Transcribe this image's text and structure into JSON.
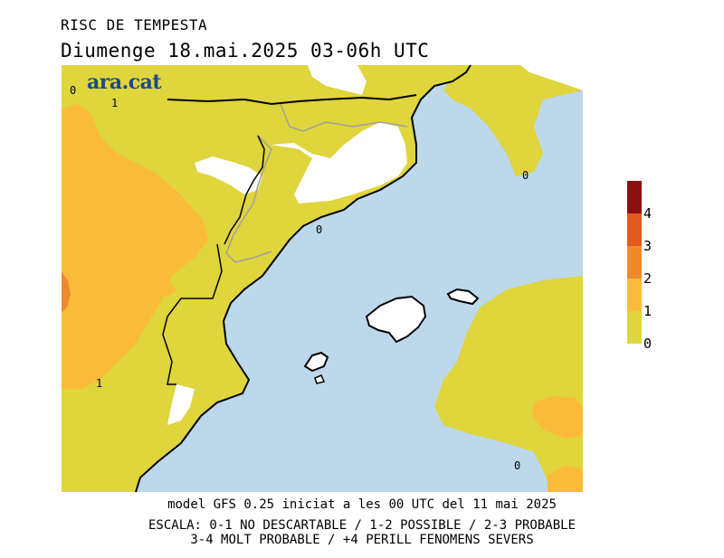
{
  "title": "RISC DE TEMPESTA",
  "subtitle": "Diumenge  18.mai.2025 03-06h UTC",
  "brand": "ara.cat",
  "model_line": "model GFS 0.25 iniciat a les 00 UTC del 11 mai 2025",
  "scale_line1": "ESCALA: 0-1 NO DESCARTABLE / 1-2 POSSIBLE / 2-3 PROBABLE",
  "scale_line2": "3-4 MOLT PROBABLE / +4 PERILL FENOMENS SEVERS",
  "legend": {
    "labels": [
      "4",
      "3",
      "2",
      "1",
      "0"
    ],
    "colors": {
      "l0_1": "#dfd53c",
      "l1_2": "#fbbb3a",
      "l2_3": "#f08a2c",
      "l3_4": "#e3591f",
      "l4_plus": "#8b1010"
    }
  },
  "colors": {
    "sea": "#bcd8ea",
    "no_risk": "#ffffff",
    "coast": "#000000",
    "border": "#a0a0a0"
  },
  "contour_labels": {
    "nw_0": "0",
    "nw_1": "1",
    "coast_0": "0",
    "east_0": "0",
    "sw_1": "1",
    "south_0": "0"
  }
}
